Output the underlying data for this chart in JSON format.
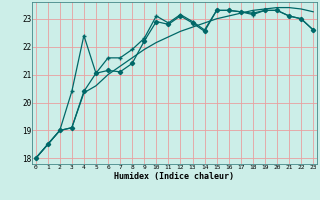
{
  "title": "",
  "xlabel": "Humidex (Indice chaleur)",
  "ylabel": "",
  "bg_color": "#cceee8",
  "grid_color": "#e8a0a0",
  "line_color": "#006868",
  "x": [
    0,
    1,
    2,
    3,
    4,
    5,
    6,
    7,
    8,
    9,
    10,
    11,
    12,
    13,
    14,
    15,
    16,
    17,
    18,
    19,
    20,
    21,
    22,
    23
  ],
  "line1": [
    18.0,
    18.5,
    19.0,
    19.1,
    20.4,
    21.05,
    21.15,
    21.1,
    21.4,
    22.2,
    22.9,
    22.8,
    23.1,
    22.85,
    22.55,
    23.3,
    23.3,
    23.25,
    23.2,
    23.3,
    23.3,
    23.1,
    23.0,
    22.6
  ],
  "line2": [
    18.0,
    18.5,
    19.0,
    20.4,
    22.4,
    21.05,
    21.6,
    21.6,
    21.9,
    22.3,
    23.1,
    22.85,
    23.15,
    22.9,
    22.6,
    23.3,
    23.3,
    23.25,
    23.15,
    23.3,
    23.3,
    23.1,
    23.0,
    22.6
  ],
  "line3": [
    18.0,
    18.5,
    19.0,
    19.1,
    20.35,
    20.6,
    21.0,
    21.3,
    21.6,
    21.9,
    22.15,
    22.35,
    22.55,
    22.7,
    22.85,
    23.0,
    23.1,
    23.2,
    23.3,
    23.35,
    23.4,
    23.4,
    23.35,
    23.25
  ],
  "ylim": [
    17.8,
    23.6
  ],
  "xlim": [
    -0.3,
    23.3
  ],
  "yticks": [
    18,
    19,
    20,
    21,
    22,
    23
  ],
  "xticks": [
    0,
    1,
    2,
    3,
    4,
    5,
    6,
    7,
    8,
    9,
    10,
    11,
    12,
    13,
    14,
    15,
    16,
    17,
    18,
    19,
    20,
    21,
    22,
    23
  ]
}
